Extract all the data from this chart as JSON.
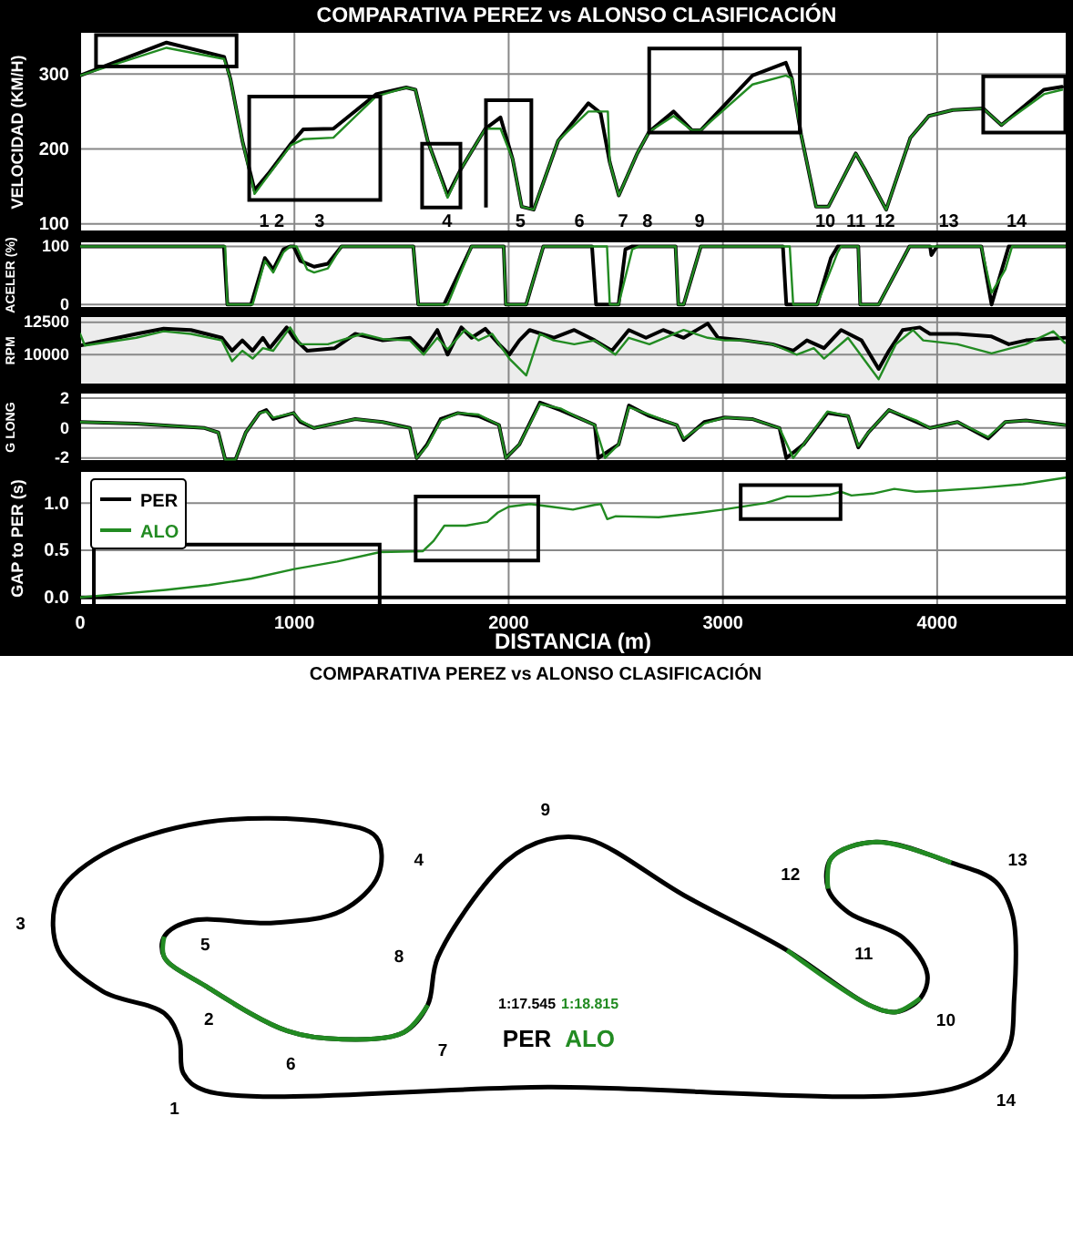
{
  "chart_data": [
    {
      "type": "line",
      "title": "COMPARATIVA PEREZ vs ALONSO CLASIFICACIÓN",
      "ylabel": "VELOCIDAD (KM/H)",
      "xlim": [
        0,
        4600
      ],
      "xticks": [
        0,
        1000,
        2000,
        3000,
        4000
      ],
      "ylim": [
        90,
        355
      ],
      "yticks": [
        100,
        200,
        300
      ],
      "grid": true,
      "tick_labels": "y",
      "series": [
        {
          "color": "#000000",
          "x": [
            0,
            403,
            672,
            701,
            757,
            814,
            884,
            984,
            1041,
            1182,
            1381,
            1522,
            1565,
            1622,
            1715,
            1777,
            1891,
            1962,
            2019,
            2061,
            2117,
            2231,
            2372,
            2429,
            2472,
            2514,
            2600,
            2656,
            2770,
            2855,
            2897,
            3138,
            3294,
            3322,
            3365,
            3435,
            3492,
            3620,
            3662,
            3762,
            3875,
            3961,
            4073,
            4215,
            4300,
            4498,
            4583
          ],
          "values": [
            298,
            342,
            323,
            294,
            211,
            145,
            169,
            207,
            226,
            227,
            273,
            282,
            279,
            211,
            138,
            173,
            227,
            242,
            186,
            123,
            119,
            211,
            261,
            248,
            182,
            138,
            194,
            223,
            250,
            225,
            225,
            298,
            315,
            294,
            219,
            123,
            123,
            194,
            173,
            119,
            215,
            244,
            252,
            254,
            232,
            279,
            283
          ]
        },
        {
          "color": "#228b22",
          "x": [
            0,
            403,
            672,
            701,
            757,
            814,
            884,
            984,
            1041,
            1182,
            1381,
            1522,
            1565,
            1622,
            1715,
            1777,
            1891,
            1962,
            2019,
            2061,
            2117,
            2231,
            2372,
            2463,
            2472,
            2514,
            2600,
            2656,
            2770,
            2855,
            2897,
            3138,
            3294,
            3322,
            3365,
            3435,
            3492,
            3620,
            3662,
            3762,
            3875,
            3961,
            4073,
            4215,
            4300,
            4498,
            4583
          ],
          "values": [
            298,
            335,
            320,
            294,
            211,
            140,
            167,
            205,
            213,
            215,
            270,
            282,
            279,
            211,
            135,
            173,
            227,
            227,
            186,
            123,
            119,
            211,
            250,
            250,
            182,
            138,
            194,
            223,
            244,
            225,
            225,
            286,
            298,
            294,
            219,
            123,
            123,
            194,
            173,
            119,
            215,
            244,
            252,
            254,
            232,
            273,
            279
          ]
        }
      ],
      "annotations": [
        "1 2",
        "3",
        "4",
        "5",
        "6",
        "7",
        "8",
        "9",
        "10",
        "11",
        "12",
        "13",
        "14"
      ]
    },
    {
      "type": "line",
      "ylabel": "ACELER (%)",
      "xlim": [
        0,
        4600
      ],
      "xticks": [
        0,
        1000,
        2000,
        3000,
        4000
      ],
      "ylim": [
        -6,
        107
      ],
      "yticks": [
        0,
        100
      ],
      "grid": true,
      "tick_labels": "y",
      "series": [
        {
          "color": "#000000",
          "x": [
            0,
            671,
            687,
            798,
            862,
            901,
            949,
            980,
            996,
            1028,
            1092,
            1156,
            1220,
            1555,
            1578,
            1699,
            1827,
            1977,
            1987,
            2082,
            2162,
            2389,
            2408,
            2513,
            2545,
            2577,
            2779,
            2792,
            2817,
            2897,
            3280,
            3296,
            3440,
            3504,
            3536,
            3632,
            3641,
            3727,
            3871,
            3967,
            3973,
            3999,
            4206,
            4254,
            4334,
            4596
          ],
          "values": [
            100,
            100,
            0,
            0,
            80,
            60,
            95,
            100,
            100,
            75,
            65,
            70,
            100,
            100,
            0,
            0,
            100,
            100,
            0,
            0,
            100,
            100,
            0,
            0,
            95,
            100,
            100,
            0,
            0,
            100,
            100,
            0,
            0,
            80,
            100,
            100,
            0,
            0,
            100,
            100,
            85,
            100,
            100,
            0,
            100,
            100
          ]
        },
        {
          "color": "#228b22",
          "x": [
            0,
            677,
            687,
            805,
            862,
            901,
            949,
            980,
            1010,
            1060,
            1092,
            1156,
            1220,
            1555,
            1578,
            1715,
            1827,
            1977,
            1987,
            2082,
            2162,
            2459,
            2472,
            2513,
            2577,
            2609,
            2779,
            2792,
            2817,
            2897,
            3312,
            3328,
            3440,
            3536,
            3552,
            3632,
            3641,
            3727,
            3871,
            3967,
            4206,
            4254,
            4318,
            4350,
            4596
          ],
          "values": [
            100,
            100,
            0,
            0,
            75,
            55,
            90,
            100,
            100,
            60,
            55,
            62,
            100,
            100,
            0,
            0,
            100,
            100,
            0,
            0,
            100,
            100,
            0,
            0,
            95,
            100,
            100,
            0,
            0,
            100,
            100,
            0,
            0,
            90,
            100,
            100,
            0,
            0,
            100,
            100,
            100,
            20,
            60,
            100,
            100
          ]
        }
      ]
    },
    {
      "type": "line",
      "ylabel": "RPM",
      "xlim": [
        0,
        4600
      ],
      "xticks": [
        0,
        1000,
        2000,
        3000,
        4000
      ],
      "ylim": [
        7700,
        12900
      ],
      "yticks": [
        10000,
        12500
      ],
      "grid": true,
      "tick_labels": "y",
      "series": [
        {
          "color": "#000000",
          "x": [
            0,
            262,
            390,
            517,
            661,
            709,
            757,
            805,
            853,
            885,
            964,
            996,
            1060,
            1188,
            1284,
            1412,
            1539,
            1603,
            1667,
            1715,
            1779,
            1827,
            1891,
            1955,
            2003,
            2050,
            2098,
            2210,
            2306,
            2402,
            2482,
            2561,
            2641,
            2721,
            2817,
            2929,
            2977,
            3104,
            3232,
            3328,
            3392,
            3472,
            3552,
            3647,
            3727,
            3775,
            3839,
            3919,
            3967,
            4095,
            4254,
            4334,
            4414,
            4596
          ],
          "values": [
            10700,
            11600,
            12000,
            11900,
            11300,
            10300,
            11100,
            10300,
            11300,
            10500,
            12100,
            11300,
            10300,
            10500,
            11600,
            11100,
            11300,
            10300,
            11900,
            10000,
            12100,
            11300,
            12000,
            10800,
            10000,
            11100,
            11900,
            11300,
            11900,
            11100,
            10300,
            11900,
            11300,
            11900,
            11300,
            12400,
            11300,
            11100,
            10800,
            10300,
            11100,
            10500,
            11900,
            11100,
            8900,
            10300,
            11900,
            12100,
            11600,
            11600,
            11400,
            10800,
            11100,
            11300
          ]
        },
        {
          "color": "#228b22",
          "x": [
            0,
            22,
            262,
            390,
            517,
            661,
            709,
            757,
            805,
            853,
            901,
            980,
            1028,
            1156,
            1316,
            1412,
            1539,
            1603,
            1667,
            1715,
            1795,
            1859,
            1923,
            2003,
            2082,
            2146,
            2210,
            2306,
            2402,
            2498,
            2561,
            2657,
            2817,
            2929,
            3009,
            3104,
            3232,
            3344,
            3424,
            3472,
            3584,
            3727,
            3807,
            3887,
            3935,
            4095,
            4254,
            4414,
            4542,
            4596
          ],
          "values": [
            11600,
            10700,
            11300,
            11800,
            11600,
            11100,
            9500,
            10300,
            9700,
            10500,
            10300,
            12100,
            10800,
            10800,
            11600,
            11200,
            11100,
            10000,
            11300,
            10400,
            11900,
            11100,
            11600,
            9700,
            8400,
            11600,
            11100,
            10800,
            11100,
            10000,
            11300,
            10800,
            11900,
            11300,
            11100,
            11100,
            10800,
            10000,
            10500,
            9700,
            11300,
            8100,
            10800,
            11900,
            11100,
            10800,
            10100,
            10800,
            11800,
            10900
          ]
        }
      ]
    },
    {
      "type": "line",
      "ylabel": "G LONG",
      "xlim": [
        0,
        4600
      ],
      "xticks": [
        0,
        1000,
        2000,
        3000,
        4000
      ],
      "ylim": [
        -2.2,
        2.3
      ],
      "yticks": [
        -2,
        0,
        2
      ],
      "grid": true,
      "tick_labels": "y",
      "series": [
        {
          "color": "#000000",
          "x": [
            0,
            262,
            581,
            645,
            677,
            725,
            773,
            837,
            869,
            901,
            996,
            1028,
            1092,
            1156,
            1284,
            1412,
            1539,
            1571,
            1619,
            1683,
            1763,
            1859,
            1955,
            1987,
            2050,
            2146,
            2242,
            2338,
            2402,
            2418,
            2513,
            2561,
            2657,
            2785,
            2817,
            2913,
            3009,
            3136,
            3264,
            3296,
            3376,
            3488,
            3584,
            3632,
            3679,
            3775,
            3903,
            3967,
            4095,
            4238,
            4318,
            4414,
            4596
          ],
          "values": [
            0.4,
            0.3,
            0,
            -0.3,
            -2.1,
            -2.1,
            -0.3,
            1.0,
            1.2,
            0.6,
            1.0,
            0.4,
            0,
            0.2,
            0.6,
            0.4,
            0,
            -2.0,
            -1.1,
            0.6,
            1.0,
            0.8,
            0.2,
            -2.0,
            -1.1,
            1.7,
            1.2,
            0.6,
            0.2,
            -2.0,
            -1.1,
            1.5,
            0.8,
            0.2,
            -0.8,
            0.4,
            0.7,
            0.6,
            0,
            -2.0,
            -1.1,
            1.0,
            0.8,
            -1.3,
            -0.3,
            1.2,
            0.4,
            0,
            0.4,
            -0.7,
            0.4,
            0.5,
            0.2
          ]
        },
        {
          "color": "#228b22",
          "x": [
            0,
            262,
            581,
            645,
            677,
            725,
            773,
            837,
            869,
            901,
            996,
            1028,
            1092,
            1156,
            1284,
            1412,
            1539,
            1571,
            1619,
            1683,
            1763,
            1859,
            1955,
            1987,
            2050,
            2146,
            2242,
            2338,
            2402,
            2450,
            2513,
            2561,
            2657,
            2785,
            2817,
            2913,
            3009,
            3136,
            3264,
            3328,
            3376,
            3488,
            3584,
            3632,
            3679,
            3775,
            3903,
            3967,
            4095,
            4238,
            4318,
            4414,
            4596
          ],
          "values": [
            0.4,
            0.3,
            0,
            -0.3,
            -2.1,
            -2.1,
            -0.3,
            1.0,
            1.1,
            0.7,
            1.0,
            0.5,
            0,
            0.2,
            0.6,
            0.4,
            0,
            -2.0,
            -1.2,
            0.5,
            1.0,
            0.9,
            0.2,
            -2.0,
            -1.1,
            1.6,
            1.3,
            0.6,
            0.2,
            -2.0,
            -1.1,
            1.4,
            0.9,
            0.2,
            -0.7,
            0.3,
            0.7,
            0.6,
            0,
            -2.0,
            -1.1,
            1.1,
            0.8,
            -1.2,
            -0.3,
            1.2,
            0.5,
            0,
            0.4,
            -0.6,
            0.4,
            0.5,
            0.2
          ]
        }
      ]
    },
    {
      "type": "line",
      "xlabel": "DISTANCIA (m)",
      "ylabel": "GAP to PER (s)",
      "xlim": [
        0,
        4600
      ],
      "xticks": [
        0,
        1000,
        2000,
        3000,
        4000
      ],
      "ylim": [
        -0.08,
        1.33
      ],
      "yticks": [
        {
          "value": 0,
          "label": "0.0"
        },
        {
          "value": 0.5,
          "label": "0.5"
        },
        {
          "value": 1,
          "label": "1.0"
        }
      ],
      "grid": true,
      "legend": "top left",
      "series": [
        {
          "name": "PER",
          "color": "#000000",
          "x": [
            0,
            4600
          ],
          "values": [
            0,
            0
          ]
        },
        {
          "name": "ALO",
          "color": "#228b22",
          "x": [
            0,
            200,
            400,
            600,
            800,
            1000,
            1200,
            1400,
            1600,
            1650,
            1700,
            1800,
            1900,
            1950,
            2000,
            2100,
            2200,
            2300,
            2400,
            2430,
            2460,
            2500,
            2700,
            2900,
            3000,
            3200,
            3300,
            3400,
            3500,
            3550,
            3600,
            3700,
            3800,
            3900,
            4000,
            4200,
            4400,
            4600
          ],
          "values": [
            0,
            0.04,
            0.08,
            0.13,
            0.2,
            0.3,
            0.38,
            0.48,
            0.49,
            0.6,
            0.76,
            0.76,
            0.8,
            0.9,
            0.96,
            0.99,
            0.96,
            0.93,
            0.98,
            0.99,
            0.83,
            0.86,
            0.85,
            0.9,
            0.93,
            1.0,
            1.07,
            1.07,
            1.09,
            1.12,
            1.08,
            1.1,
            1.15,
            1.12,
            1.13,
            1.16,
            1.2,
            1.27
          ]
        }
      ]
    },
    {
      "type": "other",
      "title": "COMPARATIVA PEREZ vs ALONSO CLASIFICACIÓN",
      "annotations": [
        "1",
        "2",
        "3",
        "4",
        "5",
        "6",
        "7",
        "8",
        "9",
        "10",
        "11",
        "12",
        "13",
        "14",
        "1:17.545",
        "1:18.815",
        "PER",
        "ALO"
      ]
    }
  ]
}
